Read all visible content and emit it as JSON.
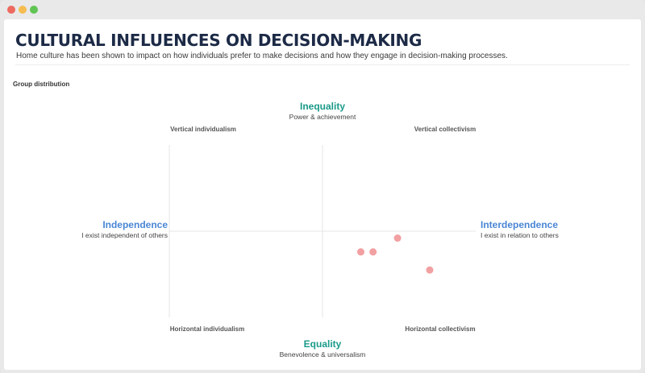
{
  "window": {
    "controls": [
      "close",
      "minimize",
      "maximize"
    ]
  },
  "header": {
    "title": "CULTURAL INFLUENCES ON DECISION-MAKING",
    "subtitle": "Home culture has been shown to impact on how individuals prefer to make decisions and how they engage in decision-making processes."
  },
  "section_label": "Group distribution",
  "colors": {
    "title": "#1c2a46",
    "vertical_axis_label": "#1a9a8a",
    "horizontal_axis_label": "#4a86d4",
    "points": "#f2a0a2",
    "gridline": "#e4e4e4"
  },
  "chart_data": {
    "type": "scatter",
    "xlim": [
      -1,
      1
    ],
    "ylim": [
      -1,
      1
    ],
    "grid": false,
    "axes": {
      "top": {
        "title": "Inequality",
        "subtitle": "Power & achievement"
      },
      "bottom": {
        "title": "Equality",
        "subtitle": "Benevolence & universalism"
      },
      "left": {
        "title": "Independence",
        "subtitle": "I exist independent of others"
      },
      "right": {
        "title": "Interdependence",
        "subtitle": "I exist in relation to others"
      }
    },
    "quadrants": {
      "top_left": "Vertical individualism",
      "top_right": "Vertical collectivism",
      "bottom_left": "Horizontal individualism",
      "bottom_right": "Horizontal collectivism"
    },
    "points": [
      {
        "x": 0.49,
        "y": -0.08
      },
      {
        "x": 0.25,
        "y": -0.24
      },
      {
        "x": 0.33,
        "y": -0.24
      },
      {
        "x": 0.7,
        "y": -0.45
      }
    ]
  }
}
